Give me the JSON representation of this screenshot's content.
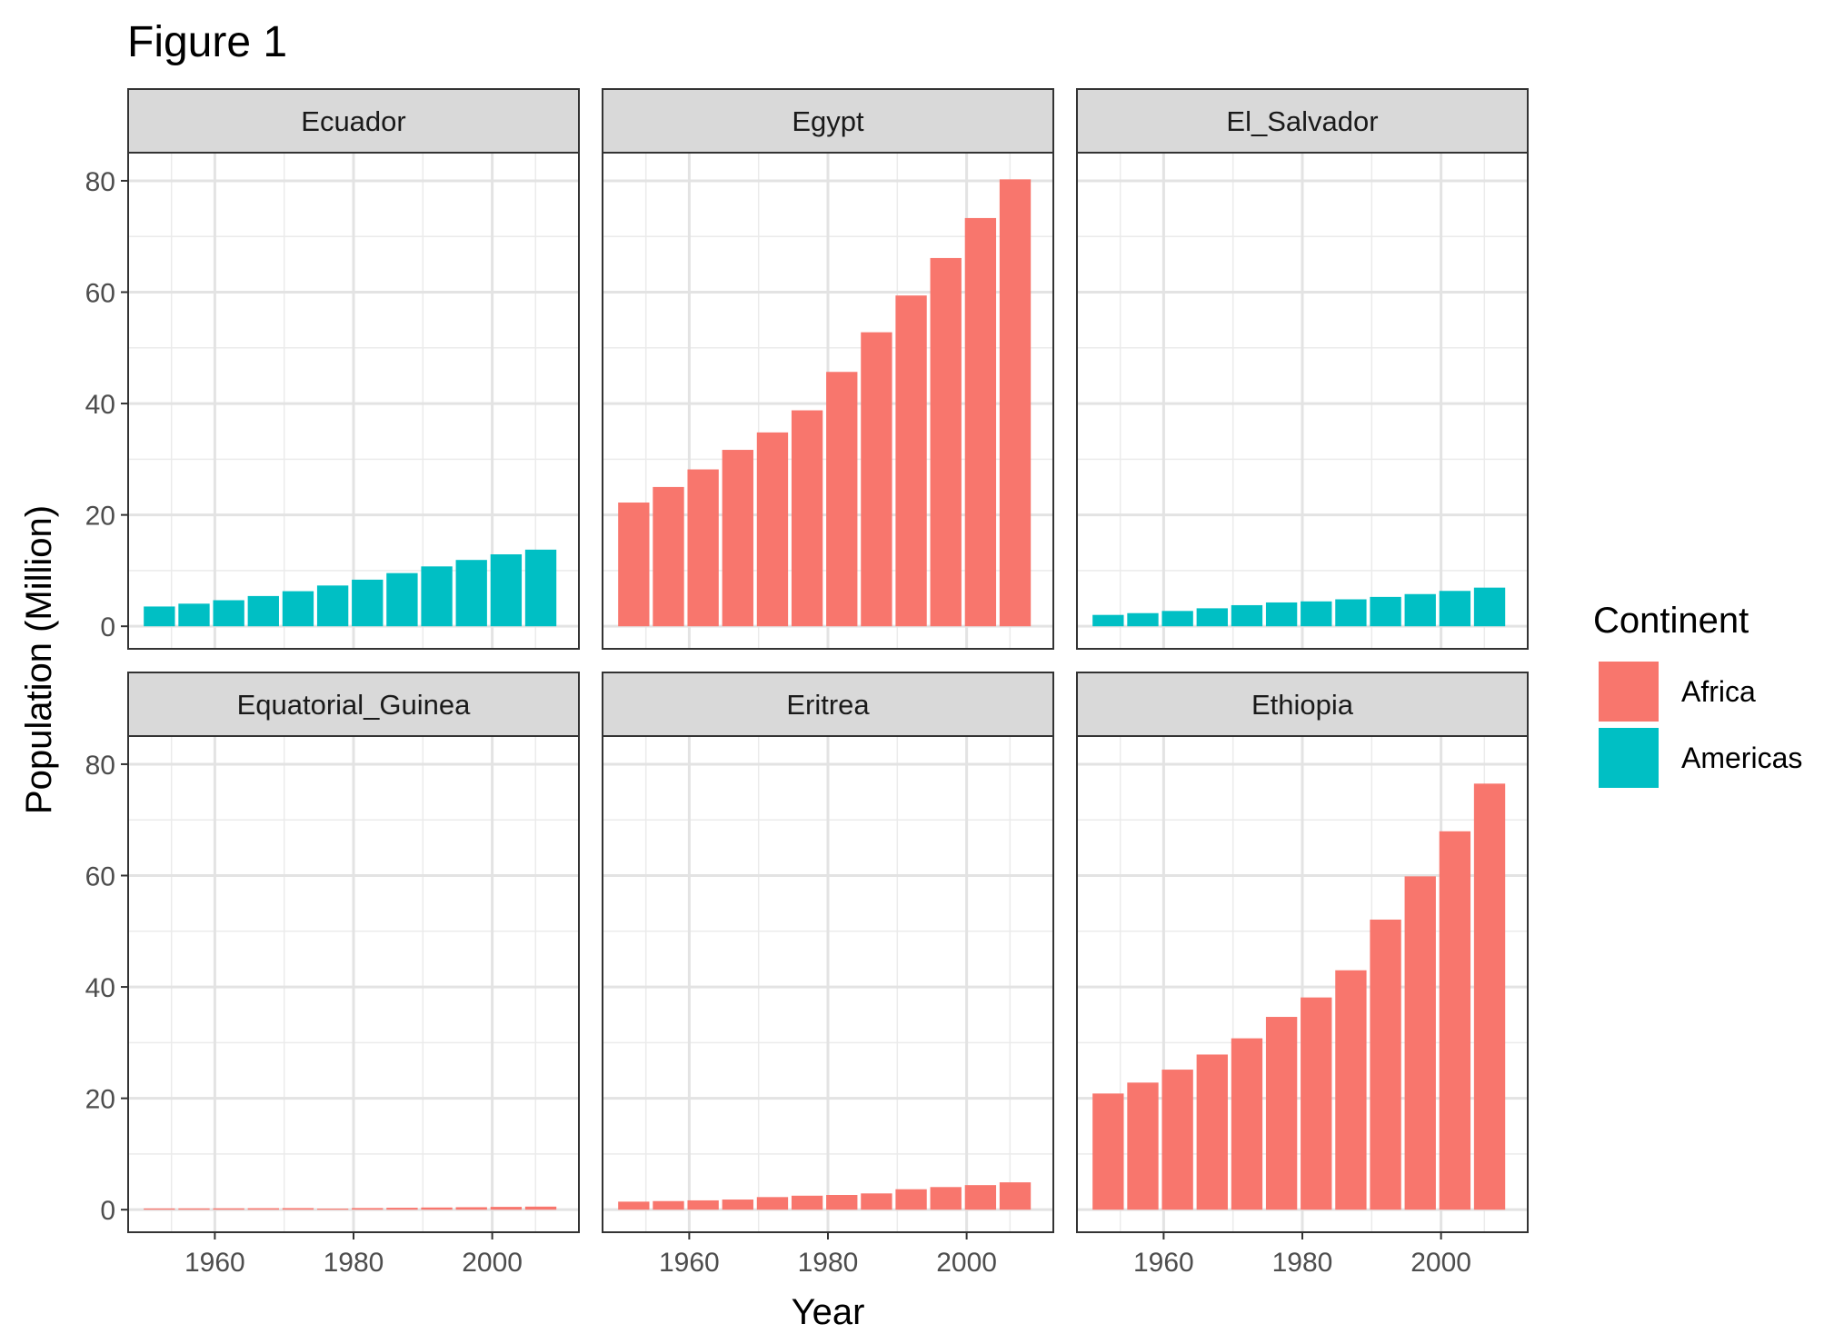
{
  "chart_data": {
    "type": "bar",
    "title": "Figure 1",
    "xlabel": "Year",
    "ylabel": "Population (Million)",
    "xlim": [
      1947.5,
      2012.5
    ],
    "ylim": [
      -4.05,
      85.05
    ],
    "x_ticks": [
      1960,
      1980,
      2000
    ],
    "y_ticks": [
      0,
      20,
      40,
      60,
      80
    ],
    "grid": true,
    "legend": {
      "title": "Continent",
      "placement": "right",
      "entries": [
        {
          "label": "Africa",
          "color": "#F8766D"
        },
        {
          "label": "Americas",
          "color": "#00BFC4"
        }
      ]
    },
    "x": [
      1952,
      1957,
      1962,
      1967,
      1972,
      1977,
      1982,
      1987,
      1992,
      1997,
      2002,
      2007
    ],
    "panels": [
      {
        "name": "Ecuador",
        "continent": "Americas",
        "values": [
          3.55,
          4.06,
          4.68,
          5.43,
          6.3,
          7.32,
          8.37,
          9.55,
          10.75,
          11.91,
          12.92,
          13.76
        ]
      },
      {
        "name": "Egypt",
        "continent": "Africa",
        "values": [
          22.22,
          25.01,
          28.17,
          31.68,
          34.81,
          38.78,
          45.68,
          52.8,
          59.4,
          66.13,
          73.31,
          80.26
        ]
      },
      {
        "name": "El_Salvador",
        "continent": "Americas",
        "values": [
          2.04,
          2.36,
          2.75,
          3.23,
          3.79,
          4.28,
          4.47,
          4.84,
          5.27,
          5.78,
          6.35,
          6.94
        ]
      },
      {
        "name": "Equatorial_Guinea",
        "continent": "Africa",
        "values": [
          0.22,
          0.23,
          0.24,
          0.26,
          0.28,
          0.19,
          0.29,
          0.34,
          0.39,
          0.44,
          0.5,
          0.55
        ]
      },
      {
        "name": "Eritrea",
        "continent": "Africa",
        "values": [
          1.44,
          1.54,
          1.67,
          1.82,
          2.26,
          2.51,
          2.64,
          2.92,
          3.67,
          4.06,
          4.41,
          4.91
        ]
      },
      {
        "name": "Ethiopia",
        "continent": "Africa",
        "values": [
          20.86,
          22.82,
          25.15,
          27.86,
          30.77,
          34.62,
          38.11,
          42.99,
          52.09,
          59.86,
          67.95,
          76.51
        ]
      }
    ]
  }
}
